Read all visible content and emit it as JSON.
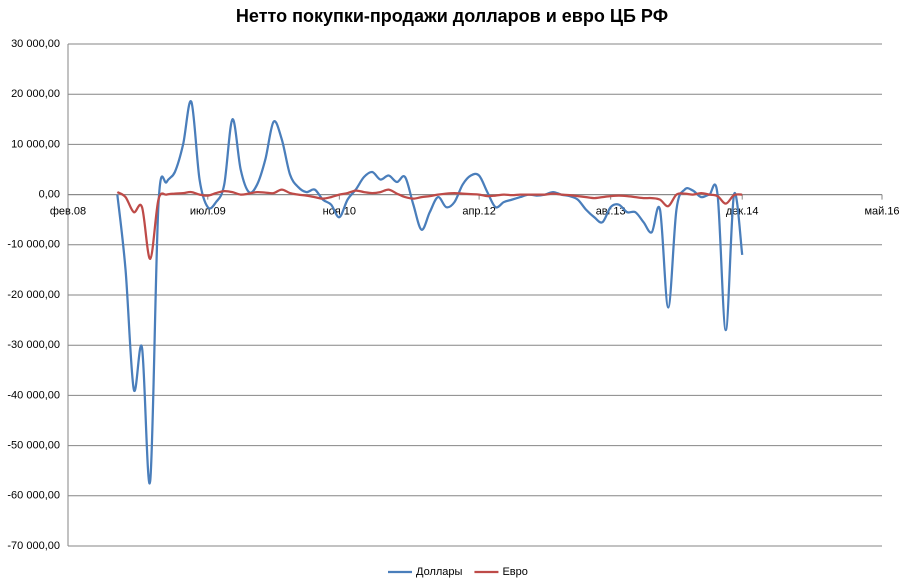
{
  "chart_data": {
    "type": "line",
    "title": "Нетто покупки-продажи долларов и евро ЦБ РФ",
    "x": [
      "2008-08",
      "2008-09",
      "2008-10",
      "2008-11",
      "2008-12",
      "2009-01",
      "2009-02",
      "2009-03",
      "2009-04",
      "2009-05",
      "2009-06",
      "2009-07",
      "2009-08",
      "2009-09",
      "2009-10",
      "2009-11",
      "2009-12",
      "2010-01",
      "2010-02",
      "2010-03",
      "2010-04",
      "2010-05",
      "2010-06",
      "2010-07",
      "2010-08",
      "2010-09",
      "2010-10",
      "2010-11",
      "2010-12",
      "2011-01",
      "2011-02",
      "2011-03",
      "2011-04",
      "2011-05",
      "2011-06",
      "2011-07",
      "2011-08",
      "2011-09",
      "2011-10",
      "2011-11",
      "2011-12",
      "2012-01",
      "2012-02",
      "2012-03",
      "2012-04",
      "2012-05",
      "2012-06",
      "2012-07",
      "2012-08",
      "2012-09",
      "2012-10",
      "2012-11",
      "2012-12",
      "2013-01",
      "2013-02",
      "2013-03",
      "2013-04",
      "2013-05",
      "2013-06",
      "2013-07",
      "2013-08",
      "2013-09",
      "2013-10",
      "2013-11",
      "2013-12",
      "2014-01",
      "2014-02",
      "2014-03",
      "2014-04",
      "2014-05",
      "2014-06",
      "2014-07",
      "2014-08",
      "2014-09",
      "2014-10",
      "2014-11",
      "2014-12"
    ],
    "series": [
      {
        "name": "Доллары",
        "color": "#4a7ebb",
        "values": [
          0,
          -15000,
          -38800,
          -30500,
          -57000,
          -2000,
          2500,
          4500,
          10000,
          18500,
          3000,
          -2500,
          -1500,
          2000,
          15000,
          5000,
          500,
          2000,
          7000,
          14500,
          11000,
          4000,
          1500,
          500,
          1000,
          -1000,
          -2000,
          -4500,
          -1000,
          1000,
          3500,
          4500,
          3000,
          3800,
          2500,
          3500,
          -2000,
          -7000,
          -3500,
          -500,
          -2500,
          -1500,
          2000,
          3800,
          3800,
          500,
          -2500,
          -1500,
          -1000,
          -500,
          0,
          -200,
          0,
          500,
          0,
          -300,
          -1000,
          -3000,
          -4500,
          -5500,
          -2500,
          -2000,
          -3500,
          -3500,
          -5500,
          -7500,
          -3000,
          -22500,
          -3000,
          1000,
          800,
          -500,
          0,
          0,
          -27000,
          0,
          -12000
        ]
      },
      {
        "name": "Евро",
        "color": "#be4b48",
        "values": [
          500,
          -500,
          -3500,
          -2500,
          -12800,
          -1000,
          0,
          200,
          300,
          500,
          0,
          -200,
          300,
          700,
          500,
          0,
          200,
          500,
          400,
          300,
          1000,
          300,
          0,
          -200,
          -500,
          -800,
          -500,
          0,
          300,
          800,
          500,
          300,
          500,
          1000,
          200,
          -500,
          -800,
          -500,
          -300,
          0,
          200,
          300,
          200,
          100,
          0,
          -300,
          -200,
          0,
          -100,
          0,
          0,
          0,
          0,
          200,
          0,
          -100,
          -300,
          -500,
          -700,
          -500,
          -300,
          -200,
          -300,
          -500,
          -700,
          -700,
          -1000,
          -2300,
          0,
          200,
          0,
          300,
          0,
          -300,
          -1800,
          -100,
          0
        ]
      }
    ],
    "xlim": [
      "2008-02",
      "2016-05"
    ],
    "xticks": [
      {
        "value": "2008-02",
        "label": "фев.08"
      },
      {
        "value": "2009-07",
        "label": "июл.09"
      },
      {
        "value": "2010-11",
        "label": "ноя.10"
      },
      {
        "value": "2012-04",
        "label": "апр.12"
      },
      {
        "value": "2013-08",
        "label": "авг.13"
      },
      {
        "value": "2014-12",
        "label": "дек.14"
      },
      {
        "value": "2016-05",
        "label": "май.16"
      }
    ],
    "ylim": [
      -70000,
      30000
    ],
    "yticks": [
      {
        "value": -70000,
        "label": "-70 000,00"
      },
      {
        "value": -60000,
        "label": "-60 000,00"
      },
      {
        "value": -50000,
        "label": "-50 000,00"
      },
      {
        "value": -40000,
        "label": "-40 000,00"
      },
      {
        "value": -30000,
        "label": "-30 000,00"
      },
      {
        "value": -20000,
        "label": "-20 000,00"
      },
      {
        "value": -10000,
        "label": "-10 000,00"
      },
      {
        "value": 0,
        "label": "0,00"
      },
      {
        "value": 10000,
        "label": "10 000,00"
      },
      {
        "value": 20000,
        "label": "20 000,00"
      },
      {
        "value": 30000,
        "label": "30 000,00"
      }
    ],
    "grid": true,
    "legend": "bottom"
  }
}
